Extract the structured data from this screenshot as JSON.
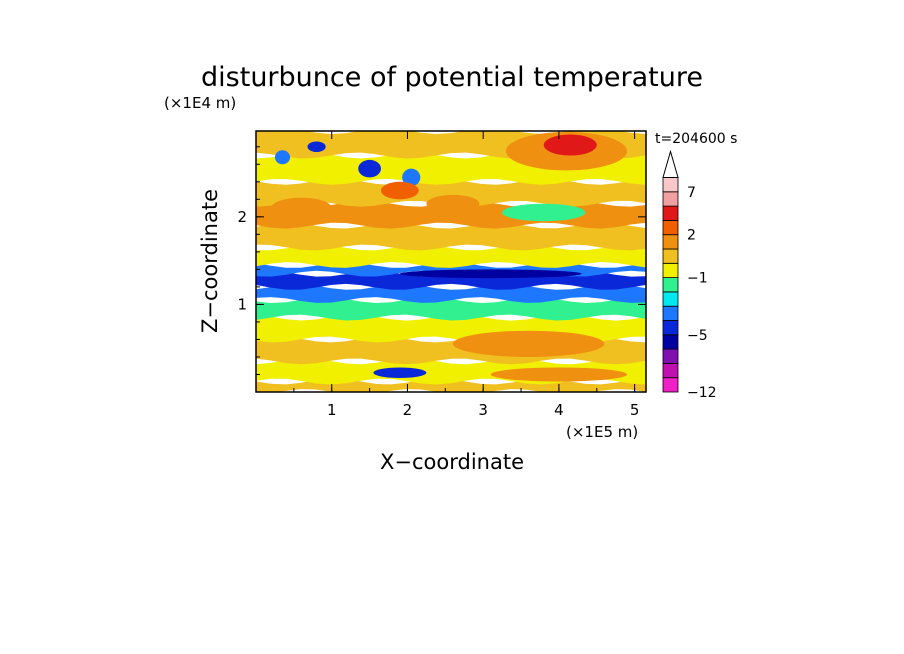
{
  "chart_data": {
    "type": "heatmap",
    "title": "disturbunce of potential temperature",
    "xlabel": "X−coordinate",
    "ylabel": "Z−coordinate",
    "x_unit": "(×1E5 m)",
    "y_unit": "(×1E4 m)",
    "time_label": "t=204600 s",
    "xlim": [
      0,
      5.15
    ],
    "ylim": [
      0,
      2.98
    ],
    "x_ticks": [
      1,
      2,
      3,
      4,
      5
    ],
    "y_ticks": [
      1,
      2
    ],
    "x_tick_labels": [
      "1",
      "2",
      "3",
      "4",
      "5"
    ],
    "y_tick_labels": [
      "1",
      "2"
    ],
    "colorbar": {
      "levels": [
        -12,
        -10,
        -8,
        -6,
        -5,
        -4,
        -3,
        -2,
        -1,
        0,
        1,
        2,
        3,
        5,
        7,
        9,
        11
      ],
      "labeled_ticks": [
        -12,
        -5,
        -1,
        2,
        7
      ],
      "tick_labels": [
        "−12",
        "−5",
        "−1",
        "2",
        "7"
      ],
      "colors": [
        "#f020c8",
        "#c010b0",
        "#8010b0",
        "#0000a0",
        "#0a28d8",
        "#1e78ff",
        "#00e8f0",
        "#30f090",
        "#f0f000",
        "#f0c020",
        "#f09010",
        "#f06000",
        "#e01818",
        "#f0a0a0",
        "#f8c8c8"
      ],
      "extend": "max"
    },
    "bands": [
      {
        "z0": 0.0,
        "z1": 0.12,
        "value": 0.5
      },
      {
        "z0": 0.12,
        "z1": 0.35,
        "value": -0.5
      },
      {
        "z0": 0.35,
        "z1": 0.6,
        "value": 0.5
      },
      {
        "z0": 0.6,
        "z1": 0.85,
        "value": -0.5
      },
      {
        "z0": 0.85,
        "z1": 1.05,
        "value": -1.5
      },
      {
        "z0": 1.05,
        "z1": 1.2,
        "value": -3.5
      },
      {
        "z0": 1.2,
        "z1": 1.35,
        "value": -4.5
      },
      {
        "z0": 1.35,
        "z1": 1.45,
        "value": -3.5
      },
      {
        "z0": 1.45,
        "z1": 1.65,
        "value": -0.5
      },
      {
        "z0": 1.65,
        "z1": 1.9,
        "value": 0.5
      },
      {
        "z0": 1.9,
        "z1": 2.15,
        "value": 1.5
      },
      {
        "z0": 2.15,
        "z1": 2.4,
        "value": 0.5
      },
      {
        "z0": 2.4,
        "z1": 2.7,
        "value": -0.5
      },
      {
        "z0": 2.7,
        "z1": 2.98,
        "value": 0.5
      }
    ],
    "features": [
      {
        "x": 0.35,
        "z": 2.68,
        "rx": 0.1,
        "rz": 0.08,
        "value": -3.5
      },
      {
        "x": 0.8,
        "z": 2.8,
        "rx": 0.12,
        "rz": 0.06,
        "value": -4.5
      },
      {
        "x": 1.5,
        "z": 2.55,
        "rx": 0.15,
        "rz": 0.1,
        "value": -4.5
      },
      {
        "x": 2.05,
        "z": 2.45,
        "rx": 0.12,
        "rz": 0.1,
        "value": -3.5
      },
      {
        "x": 1.9,
        "z": 2.3,
        "rx": 0.25,
        "rz": 0.1,
        "value": 2.5
      },
      {
        "x": 0.6,
        "z": 2.1,
        "rx": 0.4,
        "rz": 0.12,
        "value": 1.5
      },
      {
        "x": 2.6,
        "z": 2.15,
        "rx": 0.35,
        "rz": 0.1,
        "value": 1.5
      },
      {
        "x": 4.1,
        "z": 2.75,
        "rx": 0.8,
        "rz": 0.22,
        "value": 1.5
      },
      {
        "x": 4.15,
        "z": 2.82,
        "rx": 0.35,
        "rz": 0.12,
        "value": 3.5
      },
      {
        "x": 3.8,
        "z": 2.05,
        "rx": 0.55,
        "rz": 0.1,
        "value": -1.5
      },
      {
        "x": 1.9,
        "z": 0.22,
        "rx": 0.35,
        "rz": 0.06,
        "value": -4.5
      },
      {
        "x": 3.6,
        "z": 0.55,
        "rx": 1.0,
        "rz": 0.15,
        "value": 1.5
      },
      {
        "x": 4.0,
        "z": 0.2,
        "rx": 0.9,
        "rz": 0.08,
        "value": 1.5
      },
      {
        "x": 3.1,
        "z": 1.35,
        "rx": 1.2,
        "rz": 0.05,
        "value": -5.5
      }
    ]
  }
}
